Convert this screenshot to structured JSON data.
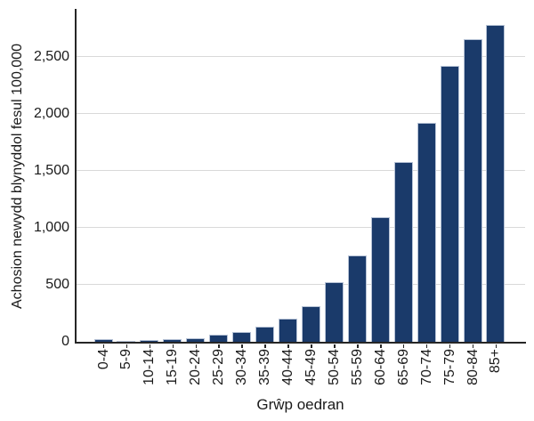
{
  "chart_data": {
    "type": "bar",
    "title": "",
    "xlabel": "Grŵp oedran",
    "ylabel": "Achosion newydd blynyddol fesul 100,000",
    "categories": [
      "0-4",
      "5-9",
      "10-14",
      "15-19",
      "20-24",
      "25-29",
      "30-34",
      "35-39",
      "40-44",
      "45-49",
      "50-54",
      "55-59",
      "60-64",
      "65-69",
      "70-74",
      "75-79",
      "80-84",
      "85+"
    ],
    "values": [
      25,
      10,
      15,
      20,
      30,
      60,
      85,
      135,
      200,
      310,
      520,
      760,
      1090,
      1575,
      1920,
      2420,
      2650,
      2780
    ],
    "y_ticks": [
      0,
      500,
      1000,
      1500,
      2000,
      2500
    ],
    "y_tick_labels": [
      "0",
      "500",
      "1,000",
      "1,500",
      "2,000",
      "2,500"
    ],
    "ylim": [
      0,
      2915
    ],
    "grid": "horizontal",
    "legend": "none",
    "bar_color": "#1a3a6a",
    "bar_border_color": "#b7c3d6",
    "gridline_color": "#d9d9d9",
    "axis_color": "#262626",
    "background_color": "#ffffff"
  }
}
